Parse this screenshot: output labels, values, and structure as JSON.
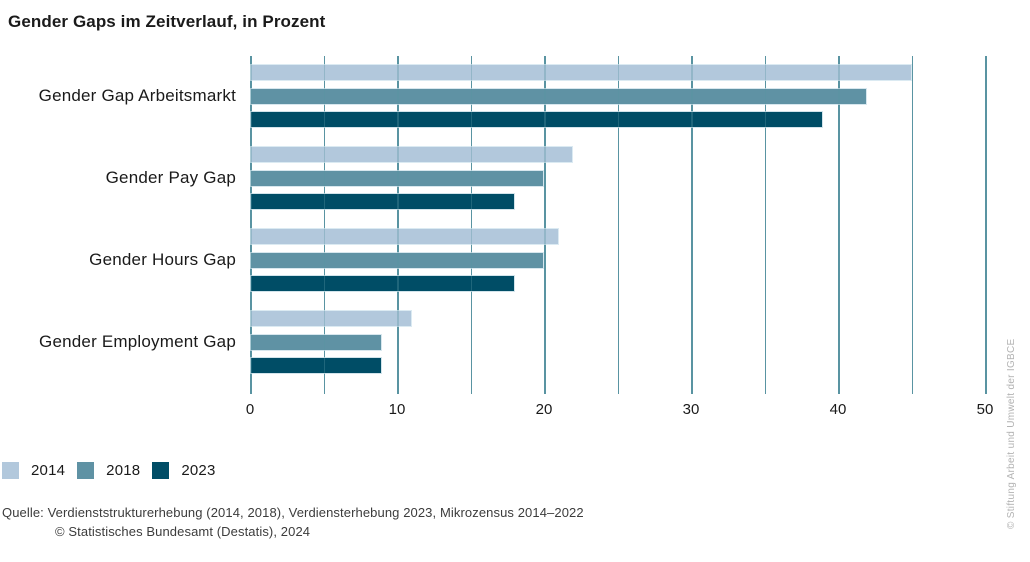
{
  "title": "Gender Gaps im Zeitverlauf, in Prozent",
  "chart_data": {
    "type": "bar",
    "orientation": "horizontal",
    "title": "Gender Gaps im Zeitverlauf, in Prozent",
    "categories": [
      "Gender Gap Arbeitsmarkt",
      "Gender Pay Gap",
      "Gender Hours Gap",
      "Gender Employment Gap"
    ],
    "series": [
      {
        "name": "2014",
        "color": "#b2c8dc",
        "values": [
          45,
          22,
          21,
          11
        ]
      },
      {
        "name": "2018",
        "color": "#5f92a4",
        "values": [
          42,
          20,
          20,
          9
        ]
      },
      {
        "name": "2023",
        "color": "#004d66",
        "values": [
          39,
          18,
          18,
          9
        ]
      }
    ],
    "xlabel": "",
    "ylabel": "",
    "xlim": [
      0,
      50
    ],
    "x_tick_labels": [
      0,
      10,
      20,
      30,
      40,
      50
    ],
    "gridline_step": 5,
    "grid": true,
    "gridline_color": "#5a94a2",
    "legend_position": "bottom-left"
  },
  "source": {
    "line1": "Quelle: Verdienststrukturerhebung (2014, 2018), Verdiensterhebung 2023, Mikrozensus 2014–2022",
    "line2": "© Statistisches Bundesamt (Destatis), 2024"
  },
  "credit_vertical": "© Stiftung Arbeit und Umwelt der IGBCE"
}
